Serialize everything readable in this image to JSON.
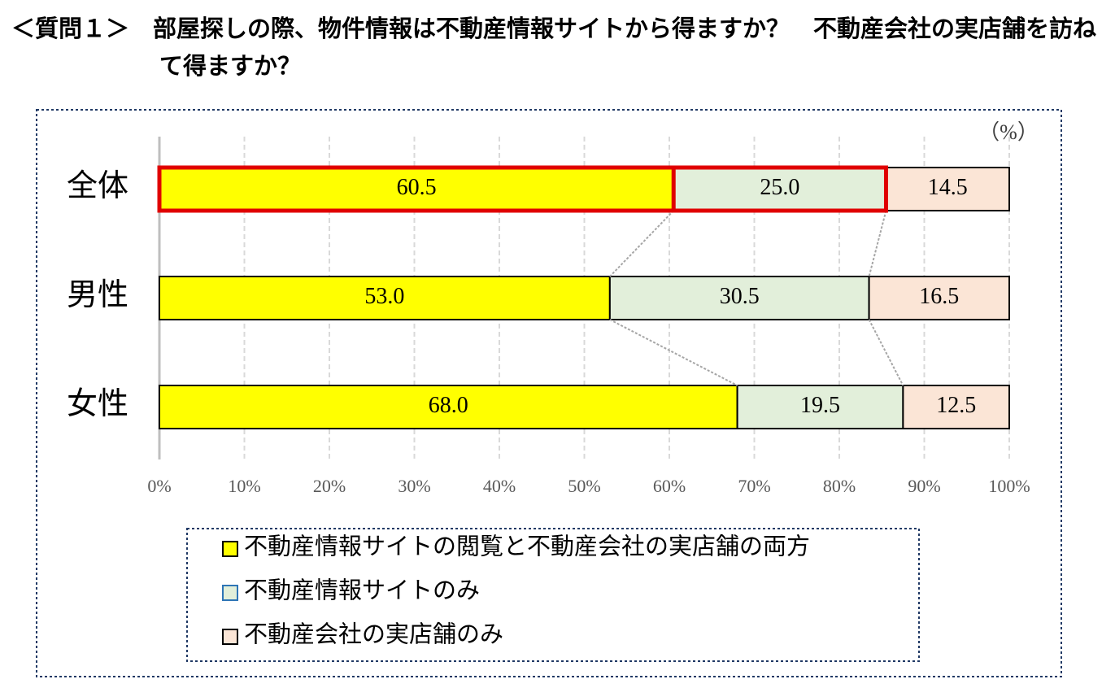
{
  "chart_data": {
    "type": "stacked-bar-horizontal",
    "title": "＜質問１＞　部屋探しの際、物件情報は不動産情報サイトから得ますか？　不動産会社の実店舗を訪ねて得ますか？",
    "unit": "（%）",
    "categories": [
      "全体",
      "男性",
      "女性"
    ],
    "series": [
      {
        "name": "不動産情報サイトの閲覧と不動産会社の実店舗の両方",
        "color": "#ffff00",
        "values": [
          60.5,
          53.0,
          68.0
        ],
        "value_labels": [
          "60.5",
          "53.0",
          "68.0"
        ]
      },
      {
        "name": "不動産情報サイトのみ",
        "color": "#e2efda",
        "values": [
          25.0,
          30.5,
          19.5
        ],
        "value_labels": [
          "25.0",
          "30.5",
          "19.5"
        ]
      },
      {
        "name": "不動産会社の実店舗のみ",
        "color": "#fbe5d6",
        "values": [
          14.5,
          16.5,
          12.5
        ],
        "value_labels": [
          "14.5",
          "16.5",
          "12.5"
        ]
      }
    ],
    "xlim": [
      0,
      100
    ],
    "xticks": [
      {
        "value": 0,
        "label": "0%"
      },
      {
        "value": 10,
        "label": "10%"
      },
      {
        "value": 20,
        "label": "20%"
      },
      {
        "value": 30,
        "label": "30%"
      },
      {
        "value": 40,
        "label": "40%"
      },
      {
        "value": 50,
        "label": "50%"
      },
      {
        "value": 60,
        "label": "60%"
      },
      {
        "value": 70,
        "label": "70%"
      },
      {
        "value": 80,
        "label": "80%"
      },
      {
        "value": 90,
        "label": "90%"
      },
      {
        "value": 100,
        "label": "100%"
      }
    ],
    "grid": true
  }
}
